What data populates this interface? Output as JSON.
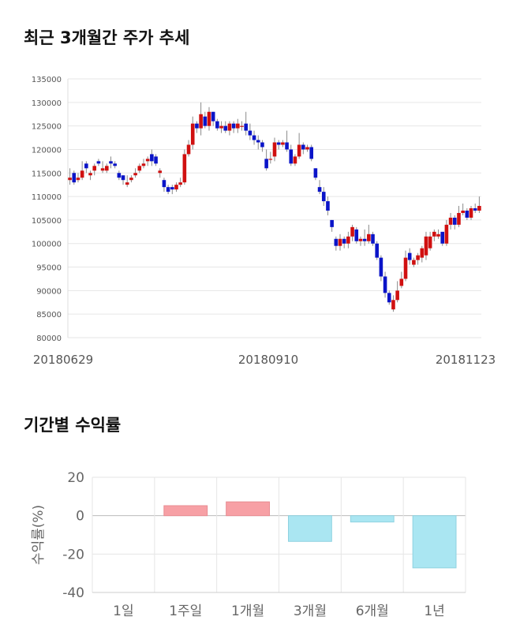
{
  "sections": {
    "price_title": "최근 3개월간 주가 추세",
    "return_title": "기간별 수익률"
  },
  "chart_data": [
    {
      "type": "candlestick",
      "title": "최근 3개월간 주가 추세",
      "ylim": [
        80000,
        135000
      ],
      "y_ticks": [
        135000,
        130000,
        125000,
        120000,
        115000,
        110000,
        105000,
        100000,
        95000,
        90000,
        85000,
        80000
      ],
      "x_tick_labels": [
        "20180629",
        "20180910",
        "20181123"
      ],
      "grid": true,
      "colors": {
        "up": "#d01010",
        "down": "#0a14c8",
        "grid": "#e6e6e6"
      },
      "closes": [
        114000,
        113000,
        114000,
        115500,
        116000,
        115000,
        116500,
        117000,
        116000,
        116500,
        117000,
        116500,
        114000,
        113500,
        113000,
        114000,
        115000,
        116500,
        117000,
        118000,
        117500,
        117000,
        115500,
        112000,
        111000,
        111500,
        112500,
        113000,
        119000,
        121000,
        125500,
        124500,
        127500,
        125000,
        128000,
        126000,
        124500,
        125000,
        124000,
        125500,
        124500,
        125500,
        125000,
        124000,
        123000,
        122000,
        121500,
        120500,
        116000,
        118000,
        121500,
        121000,
        121500,
        120000,
        117000,
        118500,
        121000,
        120000,
        120500,
        118000,
        114000,
        111000,
        109000,
        107000,
        103500,
        99500,
        101000,
        100000,
        101500,
        103500,
        100500,
        101000,
        100500,
        102000,
        100000,
        97000,
        93000,
        89500,
        87500,
        88000,
        90000,
        92500,
        97000,
        96500,
        96500,
        97500,
        99000,
        101500,
        101500,
        102500,
        102000,
        100000,
        104000,
        105500,
        104000,
        106500,
        107000,
        105500,
        107500,
        107000,
        108000
      ],
      "opens": [
        113500,
        115000,
        113500,
        114000,
        117000,
        114500,
        115500,
        117500,
        115500,
        115500,
        117500,
        117000,
        115000,
        114500,
        112500,
        113500,
        114500,
        115500,
        116500,
        117500,
        119000,
        118500,
        115000,
        113500,
        112000,
        112000,
        111500,
        112500,
        113000,
        119000,
        121000,
        125500,
        124500,
        127000,
        125000,
        128000,
        126000,
        124500,
        125000,
        124000,
        125500,
        124500,
        125000,
        125500,
        124000,
        123000,
        122000,
        121500,
        118000,
        118000,
        118500,
        121500,
        121000,
        121500,
        120000,
        117000,
        118500,
        121000,
        120000,
        120500,
        116000,
        112000,
        111000,
        109000,
        105000,
        101000,
        99500,
        101000,
        100000,
        101500,
        103000,
        100500,
        101000,
        100500,
        102000,
        100000,
        97000,
        93000,
        89500,
        86000,
        88000,
        91000,
        92500,
        98000,
        95500,
        96500,
        97000,
        97500,
        99000,
        101500,
        101500,
        102500,
        100000,
        104000,
        105500,
        104000,
        106500,
        107000,
        105500,
        107500,
        107000
      ],
      "highs": [
        116000,
        115500,
        115000,
        117500,
        117500,
        115500,
        117000,
        118000,
        117500,
        117000,
        118500,
        117500,
        115500,
        114500,
        114500,
        114500,
        116000,
        117000,
        118000,
        118500,
        120000,
        119000,
        116000,
        114000,
        112500,
        112500,
        113000,
        114000,
        120000,
        122000,
        127000,
        126000,
        130000,
        128000,
        129000,
        128000,
        126500,
        126000,
        126000,
        126000,
        126000,
        126500,
        126000,
        128000,
        125500,
        124000,
        123000,
        122000,
        120000,
        119500,
        122500,
        122000,
        122000,
        124000,
        121000,
        119000,
        123500,
        121500,
        121000,
        121000,
        116000,
        113500,
        112000,
        110000,
        105000,
        101500,
        102000,
        101500,
        102500,
        104000,
        103500,
        101500,
        103000,
        104000,
        102500,
        100500,
        97500,
        94000,
        90000,
        89000,
        92000,
        94000,
        98500,
        99000,
        97000,
        98000,
        99500,
        102500,
        102500,
        103000,
        103000,
        102000,
        105000,
        106500,
        106000,
        108000,
        108500,
        107500,
        108000,
        108500,
        110000
      ],
      "lows": [
        112500,
        112500,
        113000,
        113500,
        115000,
        113500,
        114500,
        116500,
        115000,
        115000,
        116000,
        116000,
        113500,
        112500,
        112000,
        113000,
        114000,
        115000,
        116000,
        116500,
        116500,
        116500,
        114000,
        111000,
        110500,
        110500,
        111000,
        112000,
        112500,
        118500,
        120000,
        123500,
        123000,
        124500,
        124000,
        125000,
        124000,
        123500,
        123500,
        123000,
        123500,
        123500,
        124000,
        123000,
        122000,
        121000,
        120000,
        119500,
        115500,
        117000,
        117500,
        120000,
        120500,
        119500,
        116500,
        116500,
        118000,
        119000,
        119500,
        117500,
        113500,
        110500,
        108000,
        106000,
        102500,
        98500,
        98500,
        99000,
        99000,
        100500,
        100000,
        99500,
        99500,
        100000,
        99500,
        96500,
        92000,
        88500,
        87000,
        85500,
        87500,
        90500,
        92000,
        95500,
        95000,
        95500,
        96000,
        96500,
        98500,
        100500,
        101000,
        99500,
        99500,
        103000,
        103000,
        103500,
        106000,
        105000,
        105000,
        106500,
        106500
      ]
    },
    {
      "type": "bar",
      "title": "기간별 수익률",
      "categories": [
        "1일",
        "1주일",
        "1개월",
        "3개월",
        "6개월",
        "1년"
      ],
      "values": [
        0,
        5.2,
        7.2,
        -13.4,
        -3.3,
        -27.2
      ],
      "ylabel": "수익률(%)",
      "ylim": [
        -40,
        20
      ],
      "y_ticks": [
        20,
        0,
        -20,
        -40
      ],
      "grid": true,
      "colors": {
        "positive": "#f7a0a5",
        "negative": "#aae6f2",
        "grid": "#e6e6e6"
      }
    }
  ]
}
